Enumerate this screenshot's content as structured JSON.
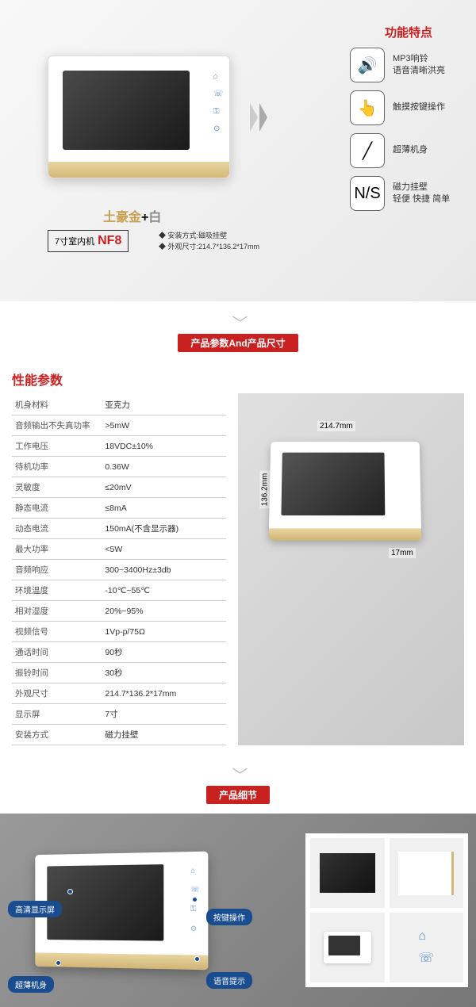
{
  "section1": {
    "color_label_gold": "土豪金",
    "color_label_plus": "+",
    "color_label_white": "白",
    "model_prefix": "7寸室内机",
    "model": "NF8",
    "install_line1": "◆ 安装方式:磁吸挂壁",
    "install_line2": "◆ 外观尺寸:214.7*136.2*17mm",
    "features_title": "功能特点",
    "features": [
      {
        "icon": "🔊",
        "text1": "MP3响铃",
        "text2": "语音清晰洪亮"
      },
      {
        "icon": "👆",
        "text1": "触摸按键操作",
        "text2": ""
      },
      {
        "icon": "╱",
        "text1": "超薄机身",
        "text2": ""
      },
      {
        "icon": "N/S",
        "text1": "磁力挂壁",
        "text2": "轻便 快捷 简单"
      }
    ]
  },
  "section2_title": "产品参数And产品尺寸",
  "specs": {
    "title": "性能参数",
    "rows": [
      [
        "机身材料",
        "亚克力"
      ],
      [
        "音频输出不失真功率",
        ">5mW"
      ],
      [
        "工作电压",
        "18VDC±10%"
      ],
      [
        "待机功率",
        "0.36W"
      ],
      [
        "灵敏度",
        "≤20mV"
      ],
      [
        "静态电流",
        "≤8mA"
      ],
      [
        "动态电流",
        "150mA(不含显示器)"
      ],
      [
        "最大功率",
        "<5W"
      ],
      [
        "音频响应",
        "300~3400Hz±3db"
      ],
      [
        "环境温度",
        "-10℃~55℃"
      ],
      [
        "相对湿度",
        "20%~95%"
      ],
      [
        "视频信号",
        "1Vp-p/75Ω"
      ],
      [
        "通话时间",
        "90秒"
      ],
      [
        "振铃时间",
        "30秒"
      ],
      [
        "外观尺寸",
        "214.7*136.2*17mm"
      ],
      [
        "显示屏",
        "7寸"
      ],
      [
        "安装方式",
        "磁力挂壁"
      ]
    ]
  },
  "dimensions": {
    "width": "214.7mm",
    "height": "136.2mm",
    "depth": "17mm"
  },
  "section3_title": "产品细节",
  "callouts": {
    "c1": "高清显示屏",
    "c2": "超薄机身",
    "c3": "按键操作",
    "c4": "语音提示"
  },
  "colors": {
    "accent": "#c92020",
    "gold": "#c9a050",
    "blue": "#1a4d8f"
  }
}
